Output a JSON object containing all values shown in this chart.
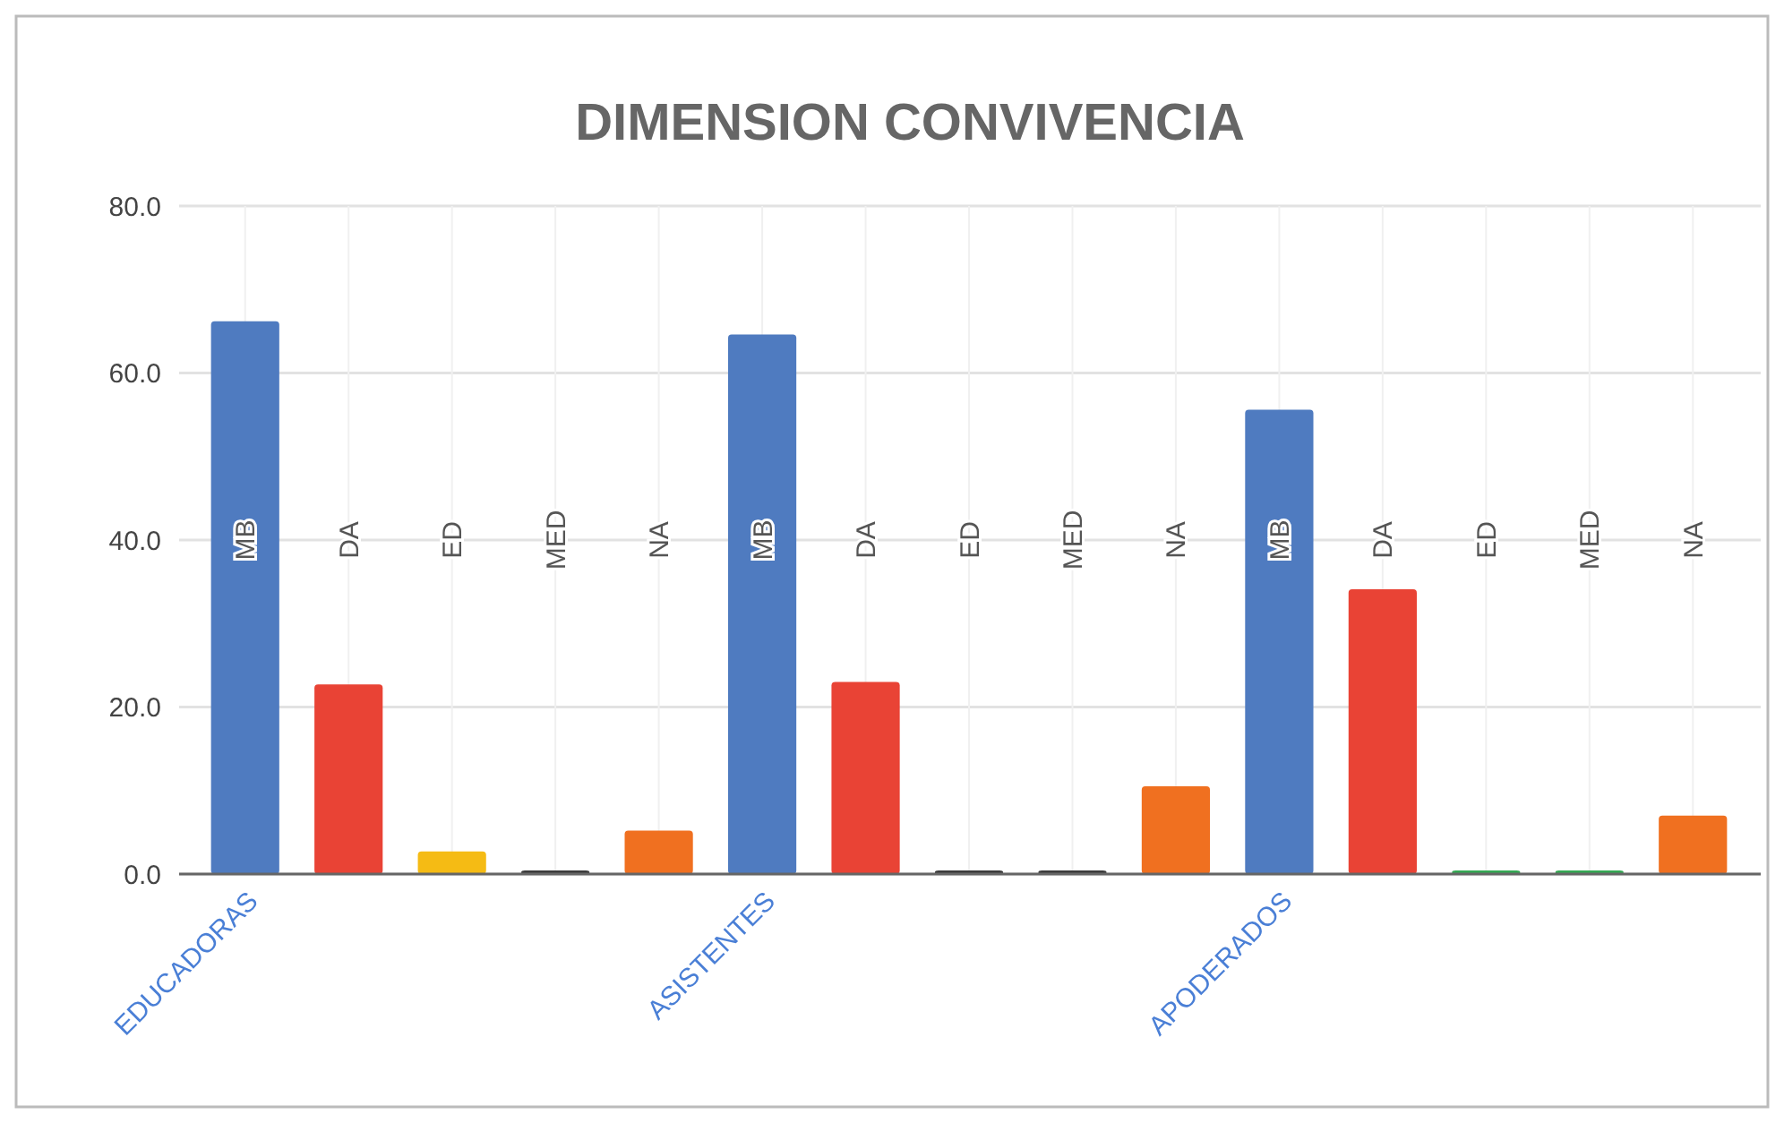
{
  "chart_data": {
    "type": "bar",
    "title": "DIMENSION CONVIVENCIA",
    "categories": [
      "MB",
      "DA",
      "ED",
      "MED",
      "NA",
      "MB",
      "DA",
      "ED",
      "MED",
      "NA",
      "MB",
      "DA",
      "ED",
      "MED",
      "NA"
    ],
    "values": [
      66.2,
      22.7,
      2.7,
      0,
      5.2,
      64.6,
      23.0,
      0,
      0,
      10.5,
      55.6,
      34.1,
      0.3,
      0.3,
      7.0
    ],
    "colors": [
      "#4f7bc0",
      "#e94335",
      "#f5bb14",
      "#3c3c3c",
      "#f07020",
      "#4f7bc0",
      "#e94335",
      "#3c3c3c",
      "#3c3c3c",
      "#f07020",
      "#4f7bc0",
      "#e94335",
      "#34a853",
      "#34a853",
      "#f07020"
    ],
    "annotations": [
      "EDUCADORAS",
      "ASISTENTES",
      "APODERADOS"
    ],
    "ylim": [
      0,
      80
    ],
    "yticks": [
      {
        "value": 0,
        "label": "0.0"
      },
      {
        "value": 20,
        "label": "20.0"
      },
      {
        "value": 40,
        "label": "40.0"
      },
      {
        "value": 60,
        "label": "60.0"
      },
      {
        "value": 80,
        "label": "80.0"
      }
    ],
    "grid": true
  }
}
